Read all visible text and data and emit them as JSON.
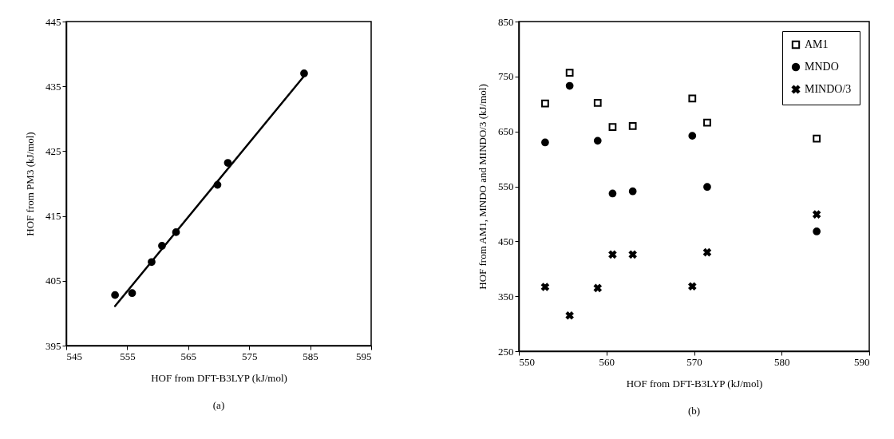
{
  "chart_data": [
    {
      "type": "scatter",
      "xlabel": "HOF  from DFT-B3LYP (kJ/mol)",
      "ylabel": "HOF from PM3 (kJ/mol)",
      "annotations": [
        "(a)"
      ],
      "xlim": [
        545,
        595
      ],
      "xticks": [
        545,
        555,
        565,
        575,
        585,
        595
      ],
      "ylim": [
        395,
        445
      ],
      "yticks": [
        395,
        405,
        415,
        425,
        435,
        445
      ],
      "x": [
        553,
        555.8,
        559,
        560.7,
        563,
        569.8,
        571.5,
        584
      ],
      "series": [
        {
          "color": "#000000",
          "marker": "circle",
          "values": [
            402.8,
            403.1,
            407.9,
            410.4,
            412.5,
            419.8,
            423.2,
            437.0
          ]
        },
        {
          "type": "line",
          "color": "#000000",
          "x": [
            553,
            584
          ],
          "values": [
            401.1,
            436.6
          ]
        }
      ]
    },
    {
      "type": "scatter",
      "xlabel": "HOF  from DFT-B3LYP (kJ/mol)",
      "ylabel": "HOF from AM1, MNDO and MINDO/3 (kJ/mol)",
      "annotations": [
        "(b)"
      ],
      "xlim": [
        550,
        590
      ],
      "xticks": [
        550,
        560,
        570,
        580,
        590
      ],
      "ylim": [
        250,
        850
      ],
      "yticks": [
        250,
        350,
        450,
        550,
        650,
        750,
        850
      ],
      "legend": "top right",
      "x": [
        553,
        555.8,
        559,
        560.7,
        563,
        569.8,
        571.5,
        584
      ],
      "series": [
        {
          "name": "AM1",
          "color": "#000000",
          "marker": "square",
          "values": [
            701,
            757,
            702,
            658,
            660,
            710,
            666,
            637
          ]
        },
        {
          "name": "MNDO",
          "color": "#000000",
          "marker": "circle",
          "values": [
            630,
            733,
            633,
            537,
            541,
            642,
            549,
            468
          ]
        },
        {
          "name": "MINDO/3",
          "color": "#000000",
          "marker": "cross",
          "values": [
            367,
            315,
            365,
            426,
            426,
            368,
            430,
            499
          ]
        }
      ]
    }
  ]
}
